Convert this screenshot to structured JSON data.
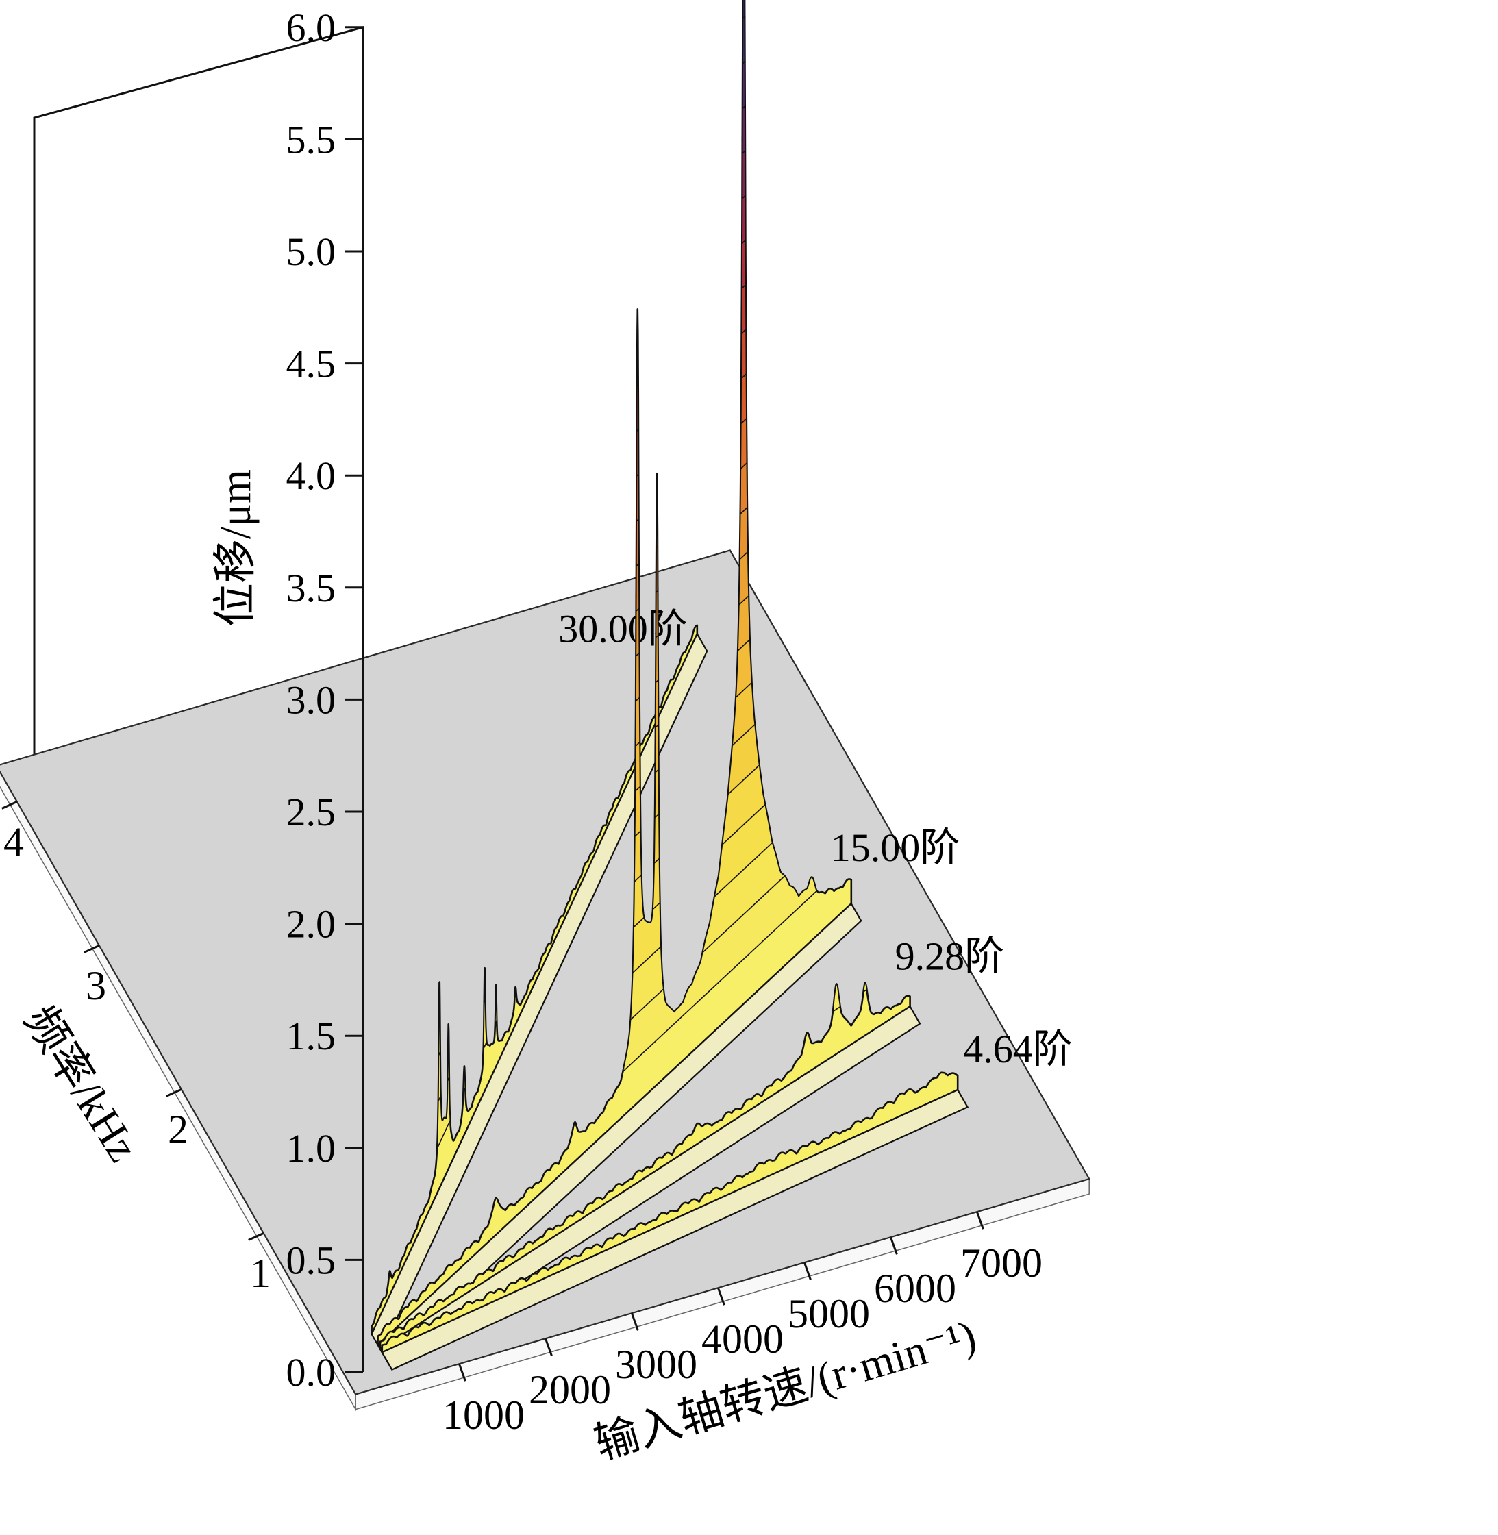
{
  "figure": {
    "background": "#ffffff",
    "floor_color": "#d4d4d4",
    "apron_color": "#f8f8f8",
    "wall_color": "#ffffff",
    "band_color": "#f1edc2",
    "outline_color": "#111111"
  },
  "chart_data": {
    "type": "line",
    "variant": "3d-waterfall-order-slices",
    "title": "",
    "legend": "none",
    "grid": "off",
    "axes": {
      "z": {
        "label": "位移/μm",
        "min": 0,
        "max": 6,
        "tick_step": 0.5,
        "tick_labels": [
          "0.0",
          "0.5",
          "1.0",
          "1.5",
          "2.0",
          "2.5",
          "3.0",
          "3.5",
          "4.0",
          "4.5",
          "5.0",
          "5.5",
          "6.0"
        ]
      },
      "x": {
        "label": "输入轴转速/(r·min⁻¹)",
        "min": 300,
        "max": 7500,
        "tick_values": [
          1000,
          2000,
          3000,
          4000,
          5000,
          6000,
          7000
        ],
        "tick_labels": [
          "1000",
          "2000",
          "3000",
          "4000",
          "5000",
          "6000",
          "7000"
        ]
      },
      "y": {
        "label": "频率/kHz",
        "min": 0,
        "max": 4,
        "tick_values": [
          1,
          2,
          3,
          4
        ],
        "tick_labels": [
          "1",
          "2",
          "3",
          "4"
        ]
      }
    },
    "baseline_noise_um": 0.05,
    "ribbon_halfwidth_khz": 0.06,
    "series": [
      {
        "name": "30.00阶",
        "order": 30.0,
        "rpm_range": [
          300,
          7500
        ],
        "peaks": [
          {
            "rpm": 1800,
            "amp_um": 0.8,
            "width_rpm": 20
          },
          {
            "rpm": 2000,
            "amp_um": 0.5,
            "width_rpm": 16
          },
          {
            "rpm": 2350,
            "amp_um": 0.25,
            "width_rpm": 25
          },
          {
            "rpm": 2800,
            "amp_um": 0.45,
            "width_rpm": 18
          },
          {
            "rpm": 3050,
            "amp_um": 0.3,
            "width_rpm": 15
          },
          {
            "rpm": 3480,
            "amp_um": 0.12,
            "width_rpm": 25
          },
          {
            "rpm": 1900,
            "amp_um": 0.18,
            "width_rpm": 100
          },
          {
            "rpm": 2900,
            "amp_um": 0.1,
            "width_rpm": 120
          },
          {
            "rpm": 700,
            "amp_um": 0.06,
            "width_rpm": 30
          }
        ]
      },
      {
        "name": "15.00阶",
        "order": 15.0,
        "rpm_range": [
          300,
          7500
        ],
        "peaks": [
          {
            "rpm": 4250,
            "amp_um": 3.2,
            "width_rpm": 26
          },
          {
            "rpm": 4545,
            "amp_um": 2.35,
            "width_rpm": 22
          },
          {
            "rpm": 4400,
            "amp_um": 0.5,
            "width_rpm": 140
          },
          {
            "rpm": 5865,
            "amp_um": 3.85,
            "width_rpm": 30
          },
          {
            "rpm": 5865,
            "amp_um": 1.25,
            "width_rpm": 380
          },
          {
            "rpm": 2100,
            "amp_um": 0.12,
            "width_rpm": 60
          },
          {
            "rpm": 3300,
            "amp_um": 0.1,
            "width_rpm": 50
          },
          {
            "rpm": 6900,
            "amp_um": 0.08,
            "width_rpm": 70
          }
        ]
      },
      {
        "name": "9.28阶",
        "order": 9.28,
        "rpm_range": [
          300,
          7500
        ],
        "peaks": [
          {
            "rpm": 6100,
            "amp_um": 0.12,
            "width_rpm": 60
          },
          {
            "rpm": 6500,
            "amp_um": 0.2,
            "width_rpm": 50
          },
          {
            "rpm": 6890,
            "amp_um": 0.16,
            "width_rpm": 45
          },
          {
            "rpm": 4600,
            "amp_um": 0.05,
            "width_rpm": 80
          },
          {
            "rpm": 6500,
            "amp_um": 0.06,
            "width_rpm": 300
          }
        ]
      },
      {
        "name": "4.64阶",
        "order": 4.64,
        "rpm_range": [
          300,
          7500
        ],
        "peaks": [
          {
            "rpm": 6800,
            "amp_um": 0.05,
            "width_rpm": 300
          },
          {
            "rpm": 7300,
            "amp_um": 0.06,
            "width_rpm": 120
          },
          {
            "rpm": 5200,
            "amp_um": 0.03,
            "width_rpm": 400
          }
        ]
      }
    ],
    "contour_step_um": 0.2,
    "colormap": [
      [
        "0.0",
        "#f8f06a"
      ],
      [
        "0.8",
        "#f5de48"
      ],
      [
        "1.4",
        "#f3c13a"
      ],
      [
        "2.0",
        "#eb9c30"
      ],
      [
        "2.5",
        "#df6f2a"
      ],
      [
        "3.0",
        "#c8402c"
      ],
      [
        "3.4",
        "#a52a40"
      ],
      [
        "3.8",
        "#722458"
      ],
      [
        "4.2",
        "#452a6e"
      ],
      [
        "4.8",
        "#25264f"
      ],
      [
        "6.0",
        "#141b38"
      ]
    ]
  }
}
